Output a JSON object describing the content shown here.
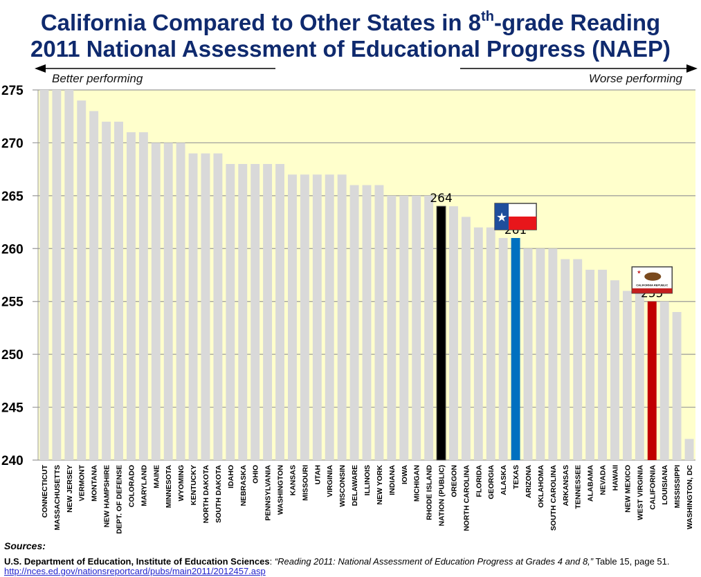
{
  "title_line1_pre": "California Compared to Other States in 8",
  "title_line1_sup": "th",
  "title_line1_post": "-grade Reading",
  "title_line2": "2011 National Assessment of Educational Progress (NAEP)",
  "left_arrow_label": "Better performing",
  "right_arrow_label": "Worse performing",
  "sources_label": "Sources:",
  "source_org": "U.S. Department of Education, Institute of Education Sciences",
  "source_title": "“Reading 2011: National Assessment of Education Progress at Grades 4 and 8,”",
  "source_detail": " Table 15, page 51.",
  "source_url": "http://nces.ed.gov/nationsreportcard/pubs/main2011/2012457.asp",
  "colors": {
    "default_bar": "#d9d9d9",
    "nation": "#000000",
    "texas": "#0070c0",
    "california": "#c00000",
    "plot_bg": "#ffffcc",
    "title": "#0f2a6e"
  },
  "chart_data": {
    "type": "bar",
    "ylim": [
      240,
      275
    ],
    "yticks": [
      240,
      245,
      250,
      255,
      260,
      265,
      270,
      275
    ],
    "grid": true,
    "categories": [
      "CONNECTICUT",
      "MASSACHUSETTS",
      "NEW JERSEY",
      "VERMONT",
      "MONTANA",
      "NEW HAMPSHIRE",
      "DEPT. OF DEFENSE",
      "COLORADO",
      "MARYLAND",
      "MAINE",
      "MINNESOTA",
      "WYOMING",
      "KENTUCKY",
      "NORTH DAKOTA",
      "SOUTH DAKOTA",
      "IDAHO",
      "NEBRASKA",
      "OHIO",
      "PENNSYLVANIA",
      "WASHINGTON",
      "KANSAS",
      "MISSOURI",
      "UTAH",
      "VIRGINIA",
      "WISCONSIN",
      "DELAWARE",
      "ILLINOIS",
      "NEW YORK",
      "INDIANA",
      "IOWA",
      "MICHIGAN",
      "RHODE ISLAND",
      "NATION (PUBLIC)",
      "OREGON",
      "NORTH CAROLINA",
      "FLORIDA",
      "GEORGIA",
      "ALASKA",
      "TEXAS",
      "ARIZONA",
      "OKLAHOMA",
      "SOUTH CAROLINA",
      "ARKANSAS",
      "TENNESSEE",
      "ALABAMA",
      "NEVADA",
      "HAWAII",
      "NEW MEXICO",
      "WEST VIRGINIA",
      "CALIFORNIA",
      "LOUISIANA",
      "MISSISSIPPI",
      "WASHINGTON, DC"
    ],
    "values": [
      275,
      275,
      275,
      274,
      273,
      272,
      272,
      271,
      271,
      270,
      270,
      270,
      269,
      269,
      269,
      268,
      268,
      268,
      268,
      268,
      267,
      267,
      267,
      267,
      267,
      266,
      266,
      266,
      265,
      265,
      265,
      265,
      264,
      264,
      263,
      262,
      262,
      261,
      261,
      260,
      260,
      260,
      259,
      259,
      258,
      258,
      257,
      256,
      256,
      255,
      255,
      254,
      242
    ],
    "highlights": [
      {
        "category": "NATION (PUBLIC)",
        "label": "264",
        "color": "#000000"
      },
      {
        "category": "TEXAS",
        "label": "261",
        "color": "#0070c0",
        "flag": "texas-flag"
      },
      {
        "category": "CALIFORNIA",
        "label": "255",
        "color": "#c00000",
        "flag": "california-flag"
      }
    ]
  },
  "california_flag_text": "CALIFORNIA REPUBLIC"
}
